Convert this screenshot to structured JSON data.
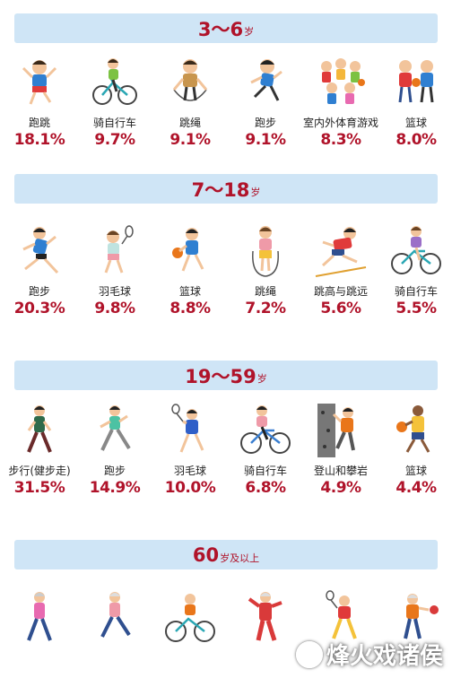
{
  "groups": [
    {
      "age": "3～6",
      "unit": "岁",
      "items": [
        {
          "label": "跑跳",
          "pct": "18.1%",
          "icon": "child-jumping-icon"
        },
        {
          "label": "骑自行车",
          "pct": "9.7%",
          "icon": "child-cycling-icon"
        },
        {
          "label": "跳绳",
          "pct": "9.1%",
          "icon": "child-jump-rope-icon"
        },
        {
          "label": "跑步",
          "pct": "9.1%",
          "icon": "child-running-icon"
        },
        {
          "label": "室内外体育游戏",
          "pct": "8.3%",
          "icon": "children-playing-icon"
        },
        {
          "label": "篮球",
          "pct": "8.0%",
          "icon": "children-basketball-icon"
        }
      ]
    },
    {
      "age": "7～18",
      "unit": "岁",
      "items": [
        {
          "label": "跑步",
          "pct": "20.3%",
          "icon": "teen-running-icon"
        },
        {
          "label": "羽毛球",
          "pct": "9.8%",
          "icon": "teen-badminton-icon"
        },
        {
          "label": "篮球",
          "pct": "8.8%",
          "icon": "teen-basketball-icon"
        },
        {
          "label": "跳绳",
          "pct": "7.2%",
          "icon": "teen-jump-rope-icon"
        },
        {
          "label": "跳高与跳远",
          "pct": "5.6%",
          "icon": "teen-high-jump-icon"
        },
        {
          "label": "骑自行车",
          "pct": "5.5%",
          "icon": "teen-cycling-icon"
        }
      ]
    },
    {
      "age": "19～59",
      "unit": "岁",
      "items": [
        {
          "label": "步行(健步走)",
          "pct": "31.5%",
          "icon": "adult-walking-icon"
        },
        {
          "label": "跑步",
          "pct": "14.9%",
          "icon": "adult-running-icon"
        },
        {
          "label": "羽毛球",
          "pct": "10.0%",
          "icon": "adult-badminton-icon"
        },
        {
          "label": "骑自行车",
          "pct": "6.8%",
          "icon": "adult-cycling-icon"
        },
        {
          "label": "登山和攀岩",
          "pct": "4.9%",
          "icon": "adult-climbing-icon"
        },
        {
          "label": "篮球",
          "pct": "4.4%",
          "icon": "adult-basketball-icon"
        }
      ]
    },
    {
      "age": "60",
      "unit": "岁及以上",
      "items": [
        {
          "icon": "senior-walking-icon"
        },
        {
          "icon": "senior-jogging-icon"
        },
        {
          "icon": "senior-cycling-icon"
        },
        {
          "icon": "senior-tai-chi-icon"
        },
        {
          "icon": "senior-badminton-icon"
        },
        {
          "icon": "senior-table-tennis-icon"
        }
      ]
    }
  ],
  "watermark": "烽火戏诸侯",
  "colors": {
    "band": "#cfe5f6",
    "accent": "#b0132a"
  }
}
